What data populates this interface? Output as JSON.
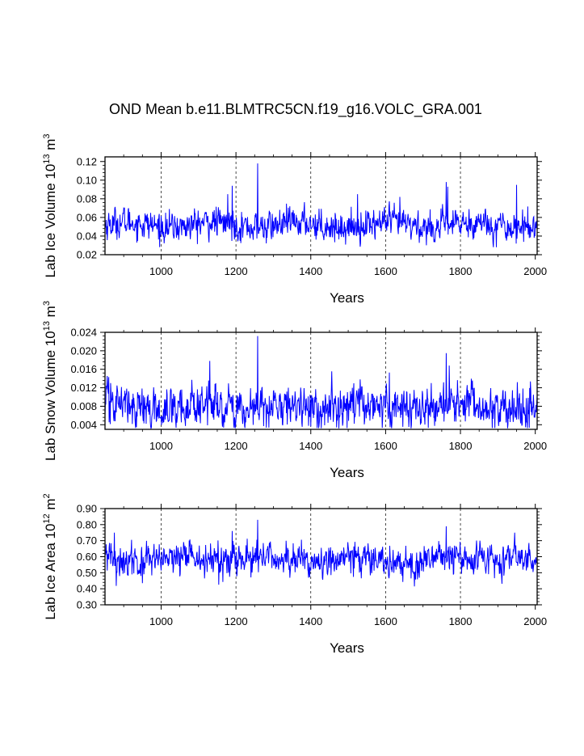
{
  "figure": {
    "title": "OND Mean b.e11.BLMTRC5CN.f19_g16.VOLC_GRA.001",
    "line_color": "#0000ff"
  },
  "chart_data": [
    {
      "type": "line",
      "name": "lab-ice-volume",
      "ylabel_base": "Lab Ice Volume 10",
      "ylabel_exp": "13",
      "ylabel_unit": "m",
      "ylabel_unit_exp": "3",
      "xlabel": "Years",
      "xlim": [
        850,
        2005
      ],
      "ylim": [
        0.02,
        0.125
      ],
      "x_ticks": [
        1000,
        1200,
        1400,
        1600,
        1800,
        2000
      ],
      "x_tick_labels": [
        "1000",
        "1200",
        "1400",
        "1600",
        "1800",
        "2000"
      ],
      "y_ticks": [
        0.02,
        0.04,
        0.06,
        0.08,
        0.1,
        0.12
      ],
      "y_tick_labels": [
        "0.02",
        "0.04",
        "0.06",
        "0.08",
        "0.10",
        "0.12"
      ],
      "grid_x": [
        1000,
        1200,
        1400,
        1600,
        1800
      ],
      "series": {
        "x_start": 850,
        "x_end": 2005,
        "mean": 0.052,
        "sd": 0.008,
        "floor": 0.028,
        "spikes": [
          {
            "x": 1178,
            "y": 0.085
          },
          {
            "x": 1190,
            "y": 0.094
          },
          {
            "x": 1258,
            "y": 0.118
          },
          {
            "x": 1525,
            "y": 0.085
          },
          {
            "x": 1638,
            "y": 0.082
          },
          {
            "x": 1762,
            "y": 0.098
          },
          {
            "x": 1766,
            "y": 0.093
          },
          {
            "x": 1950,
            "y": 0.095
          }
        ]
      }
    },
    {
      "type": "line",
      "name": "lab-snow-volume",
      "ylabel_base": "Lab Snow Volume 10",
      "ylabel_exp": "13",
      "ylabel_unit": "m",
      "ylabel_unit_exp": "3",
      "xlabel": "Years",
      "xlim": [
        850,
        2005
      ],
      "ylim": [
        0.003,
        0.024
      ],
      "x_ticks": [
        1000,
        1200,
        1400,
        1600,
        1800,
        2000
      ],
      "x_tick_labels": [
        "1000",
        "1200",
        "1400",
        "1600",
        "1800",
        "2000"
      ],
      "y_ticks": [
        0.004,
        0.008,
        0.012,
        0.016,
        0.02,
        0.024
      ],
      "y_tick_labels": [
        "0.004",
        "0.008",
        "0.012",
        "0.016",
        "0.020",
        "0.024"
      ],
      "grid_x": [
        1000,
        1200,
        1400,
        1600,
        1800
      ],
      "series": {
        "x_start": 850,
        "x_end": 2005,
        "mean": 0.0078,
        "sd": 0.0022,
        "floor": 0.0032,
        "spikes": [
          {
            "x": 860,
            "y": 0.0143
          },
          {
            "x": 1130,
            "y": 0.0178
          },
          {
            "x": 1258,
            "y": 0.0232
          },
          {
            "x": 1610,
            "y": 0.0153
          },
          {
            "x": 1762,
            "y": 0.0195
          },
          {
            "x": 1770,
            "y": 0.0168
          }
        ]
      }
    },
    {
      "type": "line",
      "name": "lab-ice-area",
      "ylabel_base": "Lab Ice Area 10",
      "ylabel_exp": "12",
      "ylabel_unit": "m",
      "ylabel_unit_exp": "2",
      "xlabel": "Years",
      "xlim": [
        850,
        2005
      ],
      "ylim": [
        0.3,
        0.9
      ],
      "x_ticks": [
        1000,
        1200,
        1400,
        1600,
        1800,
        2000
      ],
      "x_tick_labels": [
        "1000",
        "1200",
        "1400",
        "1600",
        "1800",
        "2000"
      ],
      "y_ticks": [
        0.3,
        0.4,
        0.5,
        0.6,
        0.7,
        0.8,
        0.9
      ],
      "y_tick_labels": [
        "0.30",
        "0.40",
        "0.50",
        "0.60",
        "0.70",
        "0.80",
        "0.90"
      ],
      "grid_x": [
        1000,
        1200,
        1400,
        1600,
        1800
      ],
      "series": {
        "x_start": 850,
        "x_end": 2005,
        "mean": 0.58,
        "sd": 0.05,
        "floor": 0.4,
        "spikes": [
          {
            "x": 875,
            "y": 0.75
          },
          {
            "x": 1190,
            "y": 0.76
          },
          {
            "x": 1258,
            "y": 0.83
          },
          {
            "x": 1762,
            "y": 0.79
          },
          {
            "x": 1945,
            "y": 0.75
          }
        ]
      }
    }
  ]
}
